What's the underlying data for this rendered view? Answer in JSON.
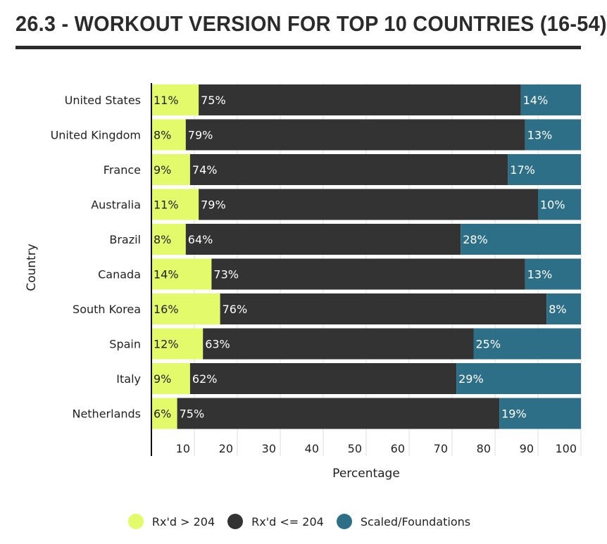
{
  "chart_data": {
    "type": "bar",
    "orientation": "horizontal",
    "stacked": true,
    "title": "26.3 - WORKOUT VERSION FOR TOP 10 COUNTRIES (16-54)",
    "xlabel": "Percentage",
    "ylabel": "Country",
    "xlim": [
      0,
      100
    ],
    "xticks": [
      "10",
      "20",
      "30",
      "40",
      "50",
      "60",
      "70",
      "80",
      "90",
      "100"
    ],
    "grid": true,
    "legend_position": "bottom",
    "categories": [
      "United States",
      "United Kingdom",
      "France",
      "Australia",
      "Brazil",
      "Canada",
      "South Korea",
      "Spain",
      "Italy",
      "Netherlands"
    ],
    "series": [
      {
        "name": "Rx'd > 204",
        "color": "#e3fb6b",
        "label_color": "#222222",
        "values": [
          11,
          8,
          9,
          11,
          8,
          14,
          16,
          12,
          9,
          6
        ]
      },
      {
        "name": "Rx'd <= 204",
        "color": "#333333",
        "label_color": "#ffffff",
        "values": [
          75,
          79,
          74,
          79,
          64,
          73,
          76,
          63,
          62,
          75
        ]
      },
      {
        "name": "Scaled/Foundations",
        "color": "#2e6f88",
        "label_color": "#ffffff",
        "values": [
          14,
          13,
          17,
          10,
          28,
          13,
          8,
          25,
          29,
          19
        ]
      }
    ]
  }
}
